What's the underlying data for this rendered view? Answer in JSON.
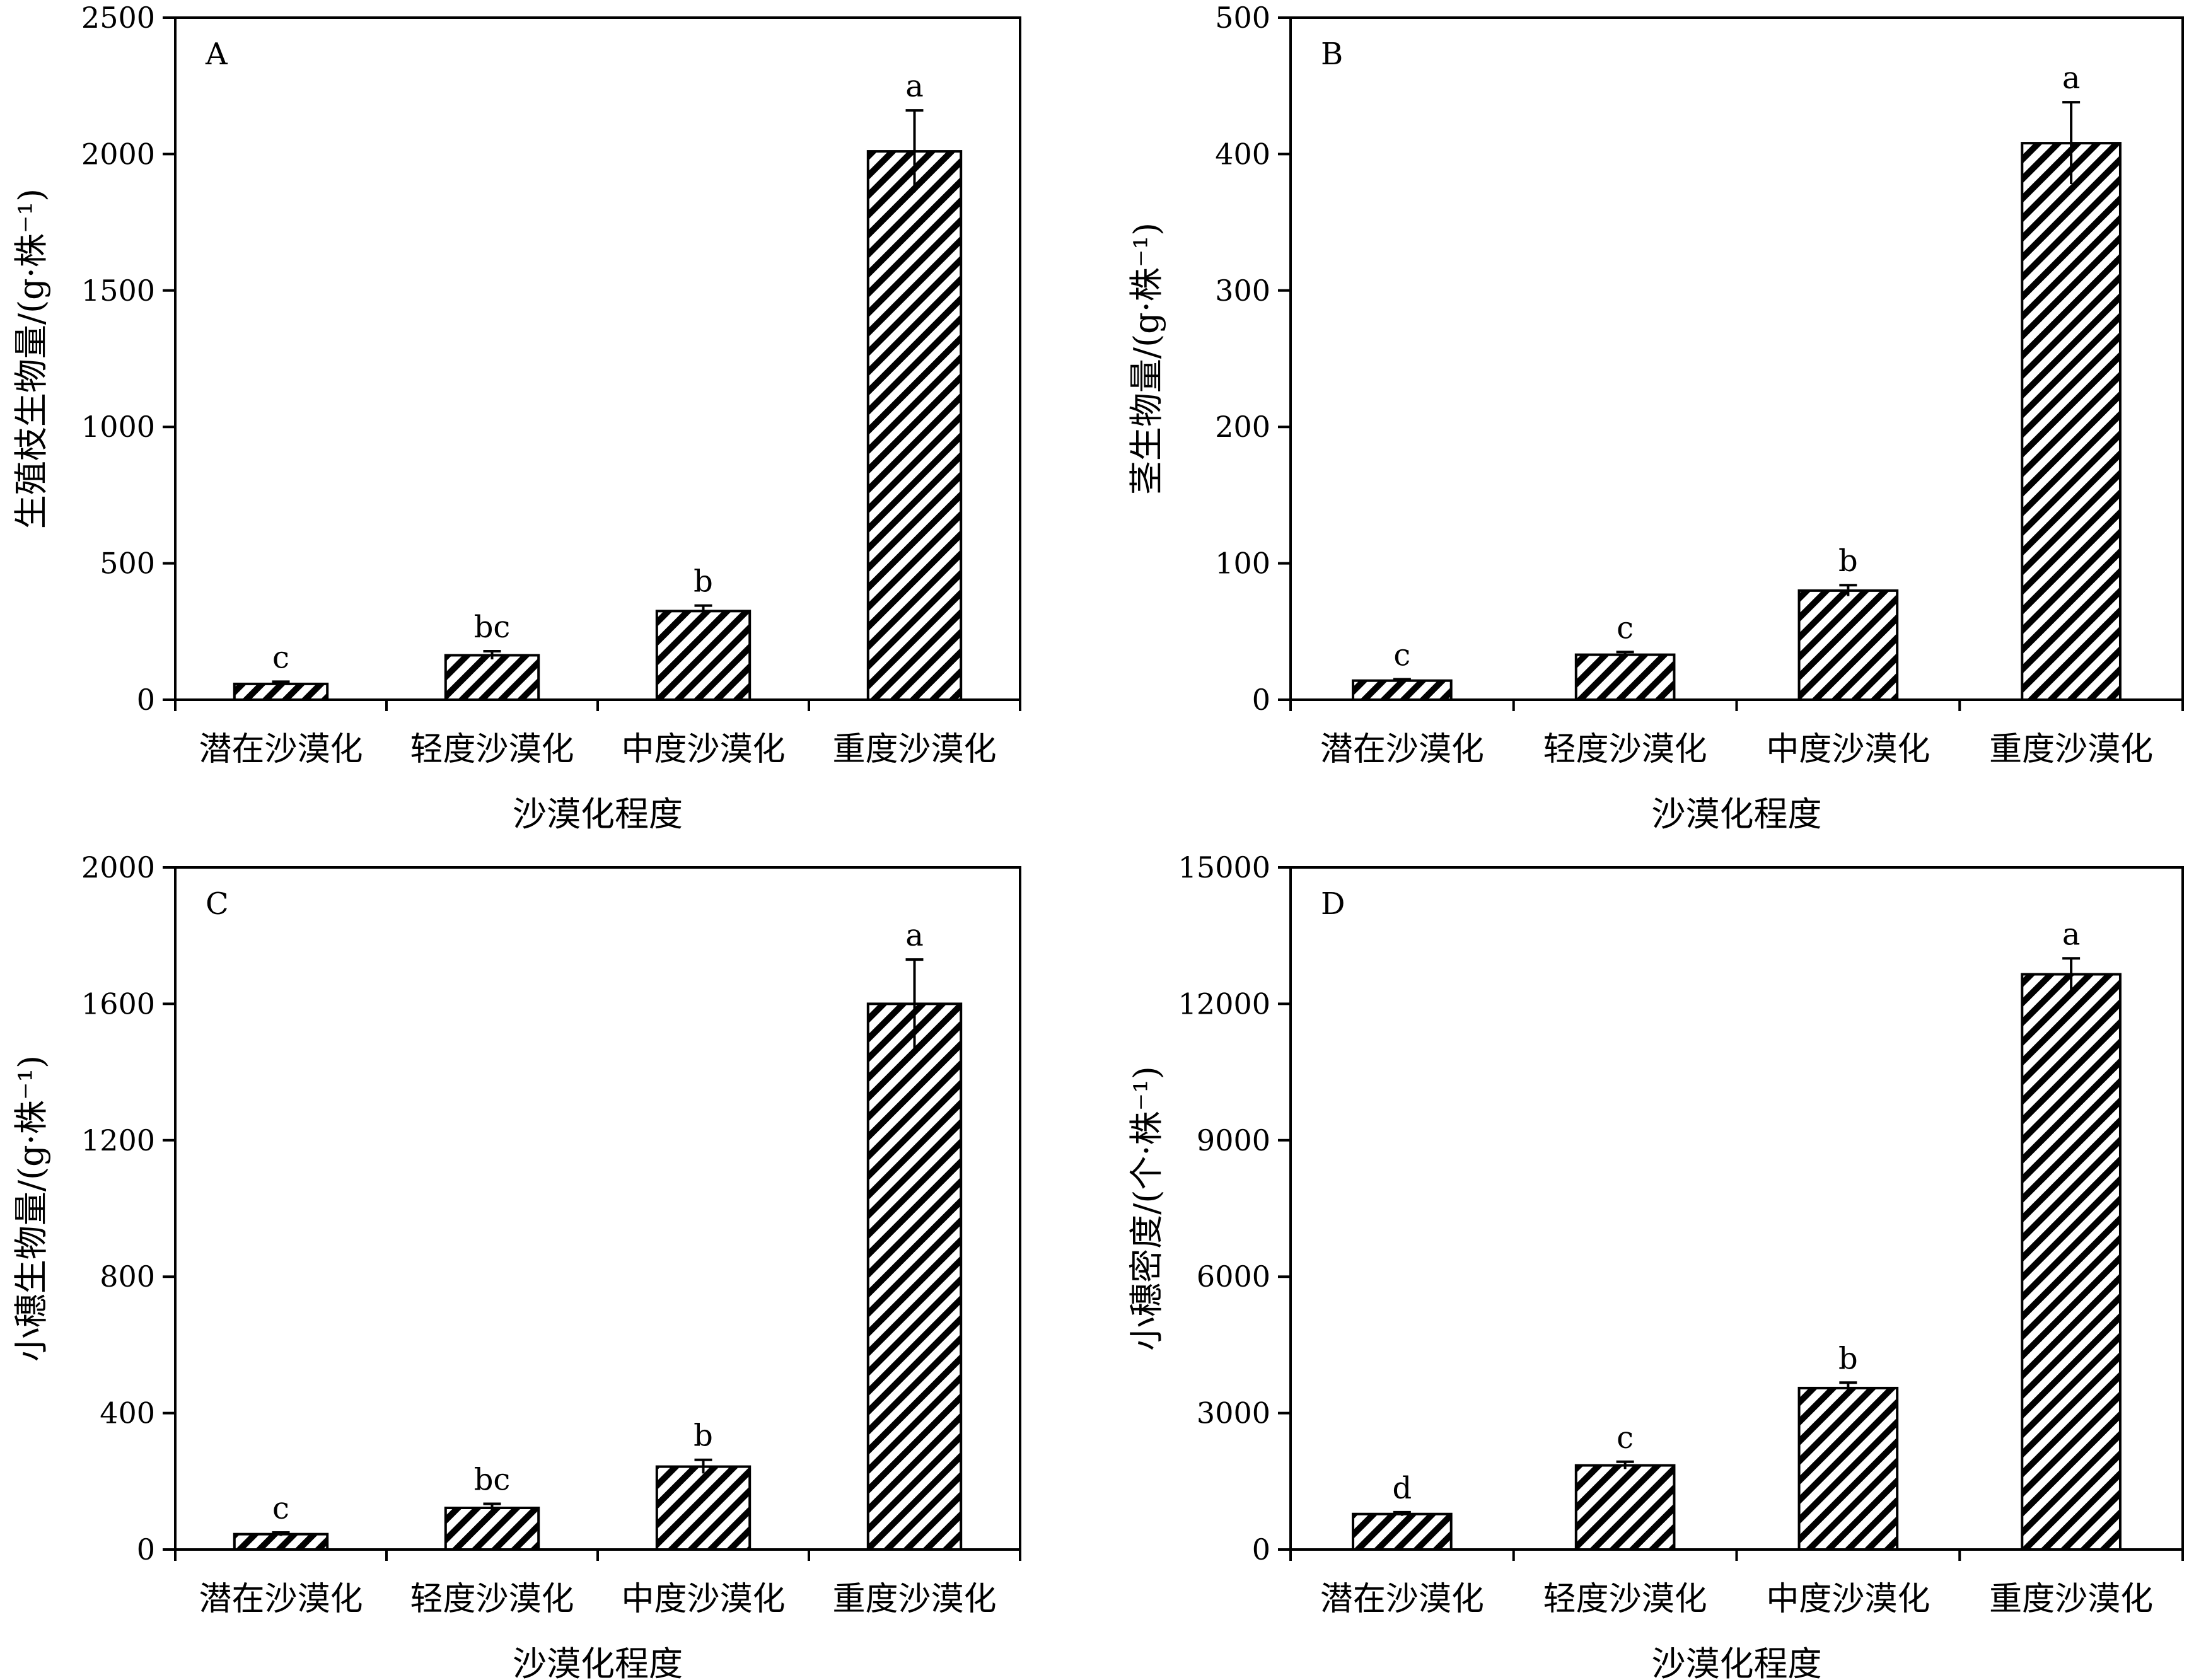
{
  "figure": {
    "panels": [
      {
        "id": "A",
        "panel_letter": "A",
        "ylabel": "生殖枝生物量/(g·株⁻¹)",
        "xlabel": "沙漠化程度",
        "ylim": [
          0,
          2500
        ],
        "yticks": [
          "0",
          "500",
          "1000",
          "1500",
          "2000",
          "2500"
        ],
        "categories": [
          "潜在沙漠化",
          "轻度沙漠化",
          "中度沙漠化",
          "重度沙漠化"
        ],
        "values": [
          58,
          163,
          325,
          2010
        ],
        "errors": [
          8,
          15,
          20,
          150
        ],
        "significance": [
          "c",
          "bc",
          "b",
          "a"
        ]
      },
      {
        "id": "B",
        "panel_letter": "B",
        "ylabel": "茎生物量/(g·株⁻¹)",
        "xlabel": "沙漠化程度",
        "ylim": [
          0,
          500
        ],
        "yticks": [
          "0",
          "100",
          "200",
          "300",
          "400",
          "500"
        ],
        "categories": [
          "潜在沙漠化",
          "轻度沙漠化",
          "中度沙漠化",
          "重度沙漠化"
        ],
        "values": [
          14,
          33,
          80,
          408
        ],
        "errors": [
          1,
          2,
          4,
          30
        ],
        "significance": [
          "c",
          "c",
          "b",
          "a"
        ]
      },
      {
        "id": "C",
        "panel_letter": "C",
        "ylabel": "小穗生物量/(g·株⁻¹)",
        "xlabel": "沙漠化程度",
        "ylim": [
          0,
          2000
        ],
        "yticks": [
          "0",
          "400",
          "800",
          "1200",
          "1600",
          "2000"
        ],
        "categories": [
          "潜在沙漠化",
          "轻度沙漠化",
          "中度沙漠化",
          "重度沙漠化"
        ],
        "values": [
          45,
          122,
          243,
          1600
        ],
        "errors": [
          5,
          12,
          20,
          130
        ],
        "significance": [
          "c",
          "bc",
          "b",
          "a"
        ]
      },
      {
        "id": "D",
        "panel_letter": "D",
        "ylabel": "小穗密度/(个·株⁻¹)",
        "xlabel": "沙漠化程度",
        "ylim": [
          0,
          15000
        ],
        "yticks": [
          "0",
          "3000",
          "6000",
          "9000",
          "12000",
          "15000"
        ],
        "categories": [
          "潜在沙漠化",
          "轻度沙漠化",
          "中度沙漠化",
          "重度沙漠化"
        ],
        "values": [
          780,
          1850,
          3550,
          12650
        ],
        "errors": [
          40,
          80,
          120,
          350
        ],
        "significance": [
          "d",
          "c",
          "b",
          "a"
        ]
      }
    ]
  },
  "chart_data": [
    {
      "type": "bar",
      "title": "A",
      "categories": [
        "潜在沙漠化",
        "轻度沙漠化",
        "中度沙漠化",
        "重度沙漠化"
      ],
      "values": [
        58,
        163,
        325,
        2010
      ],
      "errors": [
        8,
        15,
        20,
        150
      ],
      "significance": [
        "c",
        "bc",
        "b",
        "a"
      ],
      "xlabel": "沙漠化程度",
      "ylabel": "生殖枝生物量/(g·株⁻¹)",
      "ylim": [
        0,
        2500
      ],
      "grid": false
    },
    {
      "type": "bar",
      "title": "B",
      "categories": [
        "潜在沙漠化",
        "轻度沙漠化",
        "中度沙漠化",
        "重度沙漠化"
      ],
      "values": [
        14,
        33,
        80,
        408
      ],
      "errors": [
        1,
        2,
        4,
        30
      ],
      "significance": [
        "c",
        "c",
        "b",
        "a"
      ],
      "xlabel": "沙漠化程度",
      "ylabel": "茎生物量/(g·株⁻¹)",
      "ylim": [
        0,
        500
      ],
      "grid": false
    },
    {
      "type": "bar",
      "title": "C",
      "categories": [
        "潜在沙漠化",
        "轻度沙漠化",
        "中度沙漠化",
        "重度沙漠化"
      ],
      "values": [
        45,
        122,
        243,
        1600
      ],
      "errors": [
        5,
        12,
        20,
        130
      ],
      "significance": [
        "c",
        "bc",
        "b",
        "a"
      ],
      "xlabel": "沙漠化程度",
      "ylabel": "小穗生物量/(g·株⁻¹)",
      "ylim": [
        0,
        2000
      ],
      "grid": false
    },
    {
      "type": "bar",
      "title": "D",
      "categories": [
        "潜在沙漠化",
        "轻度沙漠化",
        "中度沙漠化",
        "重度沙漠化"
      ],
      "values": [
        780,
        1850,
        3550,
        12650
      ],
      "errors": [
        40,
        80,
        120,
        350
      ],
      "significance": [
        "d",
        "c",
        "b",
        "a"
      ],
      "xlabel": "沙漠化程度",
      "ylabel": "小穗密度/(个·株⁻¹)",
      "ylim": [
        0,
        15000
      ],
      "grid": false
    }
  ]
}
